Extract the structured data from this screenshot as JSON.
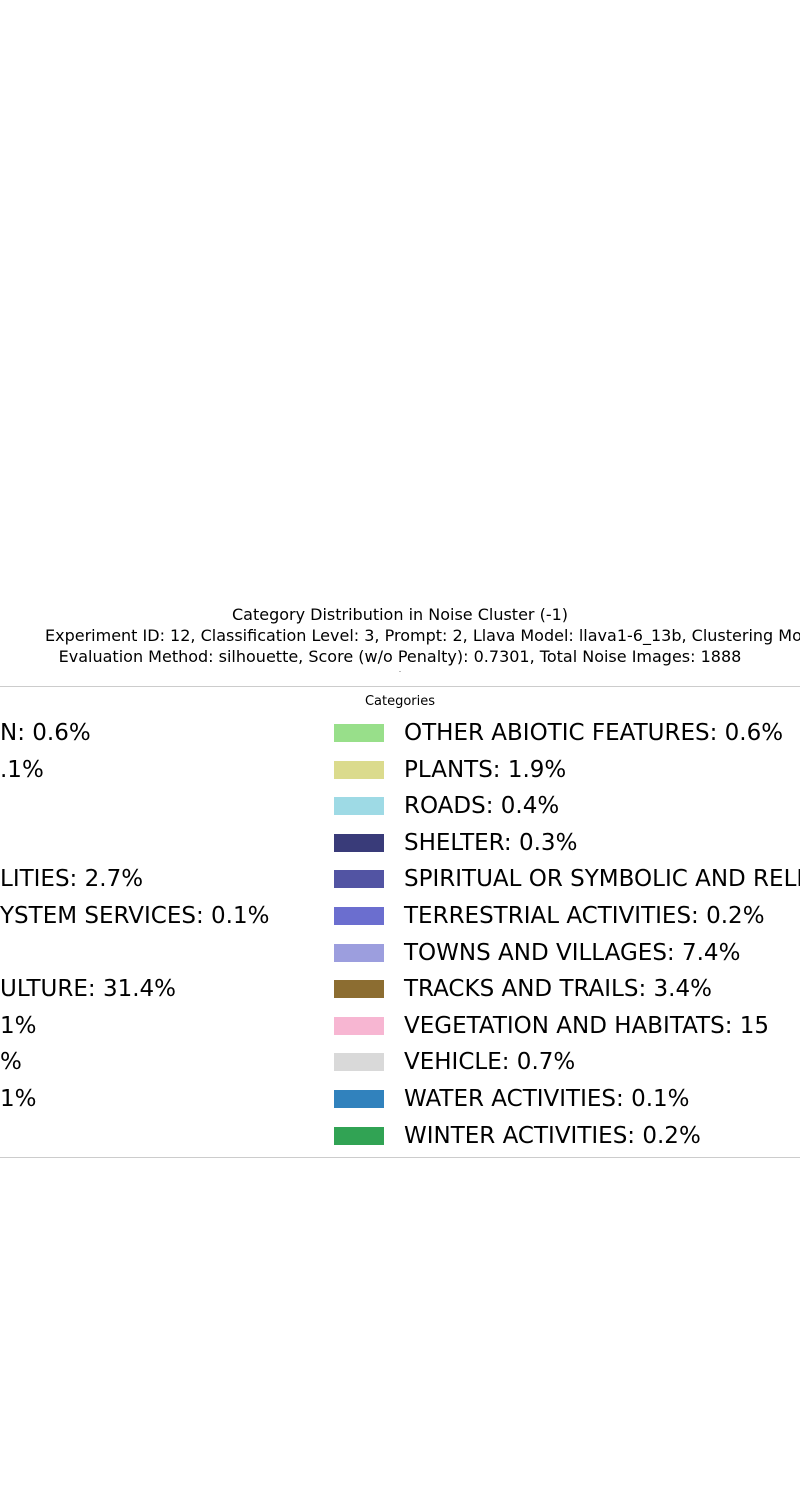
{
  "chart_data": {
    "type": "pie",
    "title": "Category Distribution in Noise Cluster (-1)",
    "subtitle_lines": [
      "Experiment ID: 12, Classification Level: 3, Prompt: 2, Llava Model: llava1-6_13b, Clustering Model: hdbscan",
      "Evaluation Method: silhouette, Score (w/o Penalty): 0.7301, Total Noise Images: 1888"
    ],
    "legend_title": "Categories",
    "legend_placement": "center",
    "left_column_visible_fragments": [
      "N: 0.6%",
      ".1%",
      "",
      "",
      "LITIES: 2.7%",
      "YSTEM SERVICES: 0.1%",
      "",
      "ULTURE: 31.4%",
      "1%",
      "%",
      "1%",
      ""
    ],
    "right_column": [
      {
        "label": "OTHER ABIOTIC FEATURES: 0.6%",
        "color": "#98df8a"
      },
      {
        "label": "PLANTS: 1.9%",
        "color": "#dbdb8d"
      },
      {
        "label": "ROADS: 0.4%",
        "color": "#9edae5"
      },
      {
        "label": "SHELTER: 0.3%",
        "color": "#393b79"
      },
      {
        "label": "SPIRITUAL OR SYMBOLIC AND RELIGIOUS",
        "color": "#5254a3"
      },
      {
        "label": "TERRESTRIAL ACTIVITIES: 0.2%",
        "color": "#6b6ecf"
      },
      {
        "label": "TOWNS AND VILLAGES: 7.4%",
        "color": "#9c9ede"
      },
      {
        "label": "TRACKS AND TRAILS: 3.4%",
        "color": "#8c6d31"
      },
      {
        "label": "VEGETATION AND HABITATS: 15",
        "color": "#f7b6d2"
      },
      {
        "label": "VEHICLE: 0.7%",
        "color": "#d9d9d9"
      },
      {
        "label": "WATER ACTIVITIES: 0.1%",
        "color": "#3182bd"
      },
      {
        "label": "WINTER ACTIVITIES: 0.2%",
        "color": "#31a354"
      }
    ]
  }
}
